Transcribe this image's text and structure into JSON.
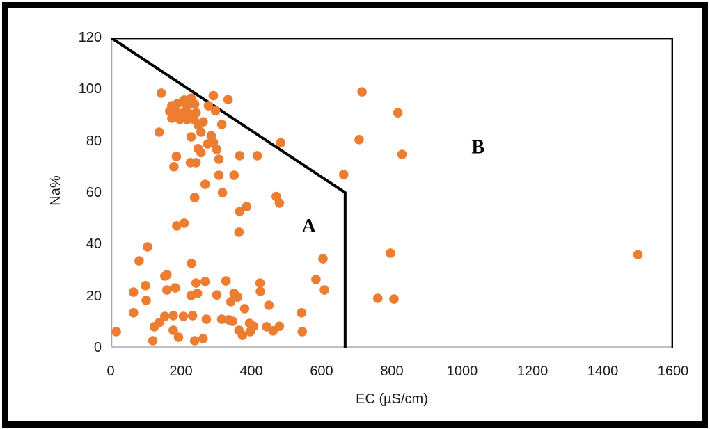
{
  "chart_data": {
    "type": "scatter",
    "title": "",
    "xlabel": "EC (µS/cm)",
    "ylabel": "Na%",
    "xlim": [
      0,
      1600
    ],
    "ylim": [
      0,
      120
    ],
    "x_ticks": [
      0,
      200,
      400,
      600,
      800,
      1000,
      1200,
      1400,
      1600
    ],
    "y_ticks": [
      0,
      20,
      40,
      60,
      80,
      100,
      120
    ],
    "grid": false,
    "legend": "none",
    "marker_color": "#ED7D31",
    "axis_line_color": "#A6A6A6",
    "frame_line_color": "#000000",
    "boundary_line": {
      "color": "#000000",
      "points": [
        [
          0,
          120
        ],
        [
          667,
          60
        ],
        [
          667,
          0
        ]
      ]
    },
    "annotations": [
      {
        "text": "A",
        "x": 564,
        "y": 47
      },
      {
        "text": "B",
        "x": 1045,
        "y": 77.5
      }
    ],
    "points": [
      [
        144,
        98.5
      ],
      [
        209,
        95.8
      ],
      [
        229,
        96.5
      ],
      [
        190,
        94.4
      ],
      [
        174,
        93.6
      ],
      [
        217,
        93.6
      ],
      [
        239,
        94.2
      ],
      [
        168,
        91.5
      ],
      [
        188,
        90.9
      ],
      [
        207,
        90.9
      ],
      [
        227,
        90.4
      ],
      [
        243,
        90.9
      ],
      [
        174,
        88.8
      ],
      [
        197,
        88.3
      ],
      [
        217,
        88.3
      ],
      [
        237,
        88.3
      ],
      [
        292,
        97.5
      ],
      [
        334,
        96.0
      ],
      [
        278,
        93.6
      ],
      [
        298,
        91.7
      ],
      [
        263,
        87.4
      ],
      [
        249,
        86.1
      ],
      [
        316,
        86.4
      ],
      [
        138,
        83.4
      ],
      [
        257,
        83.4
      ],
      [
        229,
        81.5
      ],
      [
        286,
        82.0
      ],
      [
        292,
        79.4
      ],
      [
        276,
        78.8
      ],
      [
        249,
        77.0
      ],
      [
        302,
        76.7
      ],
      [
        257,
        75.5
      ],
      [
        187,
        74.0
      ],
      [
        180,
        70.0
      ],
      [
        227,
        71.6
      ],
      [
        243,
        71.6
      ],
      [
        308,
        72.9
      ],
      [
        367,
        74.3
      ],
      [
        417,
        74.3
      ],
      [
        308,
        66.7
      ],
      [
        351,
        66.7
      ],
      [
        269,
        63.2
      ],
      [
        318,
        60.0
      ],
      [
        239,
        58.1
      ],
      [
        484,
        79.3
      ],
      [
        367,
        52.7
      ],
      [
        387,
        54.6
      ],
      [
        471,
        58.5
      ],
      [
        480,
        56.0
      ],
      [
        188,
        47.1
      ],
      [
        209,
        48.2
      ],
      [
        365,
        44.7
      ],
      [
        105,
        39.0
      ],
      [
        81,
        33.6
      ],
      [
        230,
        32.6
      ],
      [
        160,
        28.2
      ],
      [
        604,
        34.4
      ],
      [
        584,
        26.4
      ],
      [
        608,
        22.3
      ],
      [
        543,
        13.5
      ],
      [
        545,
        6.2
      ],
      [
        154,
        27.7
      ],
      [
        243,
        25.0
      ],
      [
        269,
        25.6
      ],
      [
        328,
        25.8
      ],
      [
        425,
        25.0
      ],
      [
        426,
        21.8
      ],
      [
        65,
        21.5
      ],
      [
        160,
        22.3
      ],
      [
        184,
        23.1
      ],
      [
        229,
        20.2
      ],
      [
        247,
        21.0
      ],
      [
        302,
        20.4
      ],
      [
        351,
        21.0
      ],
      [
        99,
        24.0
      ],
      [
        101,
        18.3
      ],
      [
        65,
        13.5
      ],
      [
        361,
        19.6
      ],
      [
        342,
        17.8
      ],
      [
        381,
        15.1
      ],
      [
        450,
        16.4
      ],
      [
        154,
        12.1
      ],
      [
        178,
        12.4
      ],
      [
        207,
        12.1
      ],
      [
        233,
        12.4
      ],
      [
        272,
        11.0
      ],
      [
        316,
        11.0
      ],
      [
        336,
        10.8
      ],
      [
        347,
        10.2
      ],
      [
        395,
        9.4
      ],
      [
        407,
        8.3
      ],
      [
        124,
        8.1
      ],
      [
        138,
        9.7
      ],
      [
        16,
        6.2
      ],
      [
        178,
        6.7
      ],
      [
        193,
        4.0
      ],
      [
        120,
        2.7
      ],
      [
        239,
        2.7
      ],
      [
        263,
        3.5
      ],
      [
        365,
        6.7
      ],
      [
        375,
        4.8
      ],
      [
        397,
        6.2
      ],
      [
        444,
        8.1
      ],
      [
        462,
        6.5
      ],
      [
        480,
        8.3
      ],
      [
        715,
        99.0
      ],
      [
        817,
        90.9
      ],
      [
        707,
        80.5
      ],
      [
        829,
        74.8
      ],
      [
        663,
        67.0
      ],
      [
        796,
        36.6
      ],
      [
        760,
        19.1
      ],
      [
        806,
        18.8
      ],
      [
        1500,
        36.0
      ]
    ]
  }
}
